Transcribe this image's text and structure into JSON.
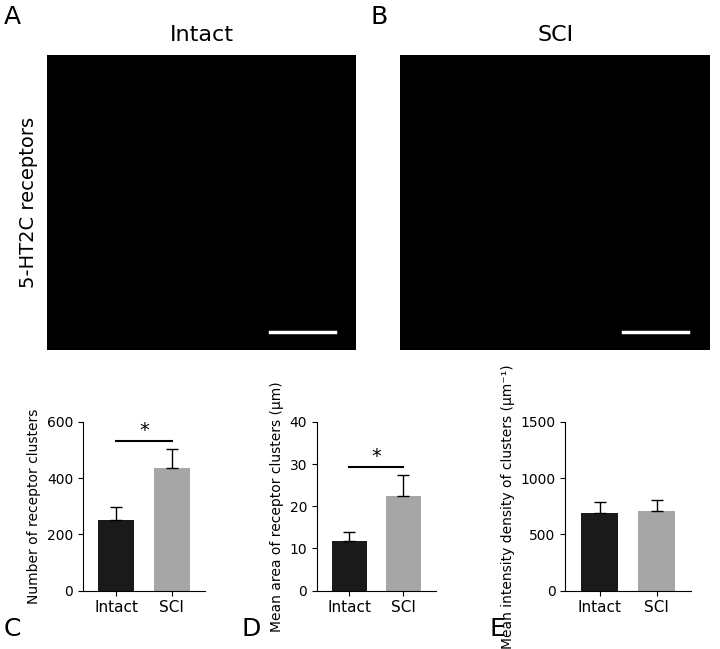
{
  "chart_data": [
    {
      "type": "image",
      "panel_label": "A",
      "title": "Intact",
      "y_label": "5-HT2C receptors"
    },
    {
      "type": "image",
      "panel_label": "B",
      "title": "SCI"
    },
    {
      "type": "bar",
      "panel_label": "C",
      "categories": [
        "Intact",
        "SCI"
      ],
      "values": [
        250,
        437
      ],
      "errors": [
        48,
        65
      ],
      "colors": [
        "#1a1a1a",
        "#a6a6a6"
      ],
      "y_label": "Number of receptor clusters",
      "significance": "*",
      "ylim": [
        0,
        600
      ],
      "yticks": [
        0,
        200,
        400,
        600
      ]
    },
    {
      "type": "bar",
      "panel_label": "D",
      "categories": [
        "Intact",
        "SCI"
      ],
      "values": [
        11.8,
        22.5
      ],
      "errors": [
        2.1,
        4.8
      ],
      "colors": [
        "#1a1a1a",
        "#a6a6a6"
      ],
      "y_label": "Mean area of receptor clusters (µm)",
      "significance": "*",
      "ylim": [
        0,
        40
      ],
      "yticks": [
        0,
        10,
        20,
        30,
        40
      ]
    },
    {
      "type": "bar",
      "panel_label": "E",
      "categories": [
        "Intact",
        "SCI"
      ],
      "values": [
        690,
        705
      ],
      "errors": [
        95,
        100
      ],
      "colors": [
        "#1a1a1a",
        "#a6a6a6"
      ],
      "y_label": "Mean intensity density of clusters (µm⁻¹)",
      "ylim": [
        0,
        1500
      ],
      "yticks": [
        0,
        500,
        1000,
        1500
      ]
    }
  ]
}
